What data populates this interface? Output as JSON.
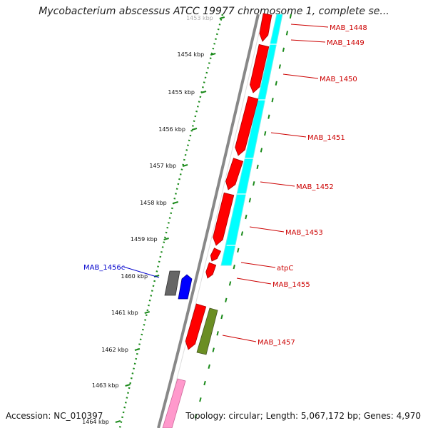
{
  "title": "Mycobacterium abscessus ATCC 19977 chromosome 1, complete se...",
  "accession": "Accession: NC_010397",
  "summary": "Topology: circular; Length: 5,067,172 bp; Genes: 4,970",
  "colors": {
    "forward": "#ff0000",
    "cds_forward": "#00ffff",
    "reverse_gray": "#666666",
    "reverse_blue": "#0000ff",
    "olive": "#6b8e23",
    "pink": "#ff99cc",
    "scale": "#1a8a1a",
    "backbone": "#888888",
    "label_red": "#cc0000",
    "label_blue": "#0000cc"
  },
  "ruler": {
    "ticks": [
      "1453 kbp",
      "1454 kbp",
      "1455 kbp",
      "1456 kbp",
      "1457 kbp",
      "1458 kbp",
      "1459 kbp",
      "1460 kbp",
      "1461 kbp",
      "1462 kbp",
      "1463 kbp",
      "1464 kbp"
    ]
  },
  "genes": [
    {
      "name": "MAB_1448",
      "color": "red"
    },
    {
      "name": "MAB_1449",
      "color": "red"
    },
    {
      "name": "MAB_1450",
      "color": "red"
    },
    {
      "name": "MAB_1451",
      "color": "red"
    },
    {
      "name": "MAB_1452",
      "color": "red"
    },
    {
      "name": "MAB_1453",
      "color": "red"
    },
    {
      "name": "atpC",
      "color": "red"
    },
    {
      "name": "MAB_1455",
      "color": "red"
    },
    {
      "name": "MAB_1456c",
      "color": "blue"
    },
    {
      "name": "MAB_1457",
      "color": "red"
    }
  ]
}
